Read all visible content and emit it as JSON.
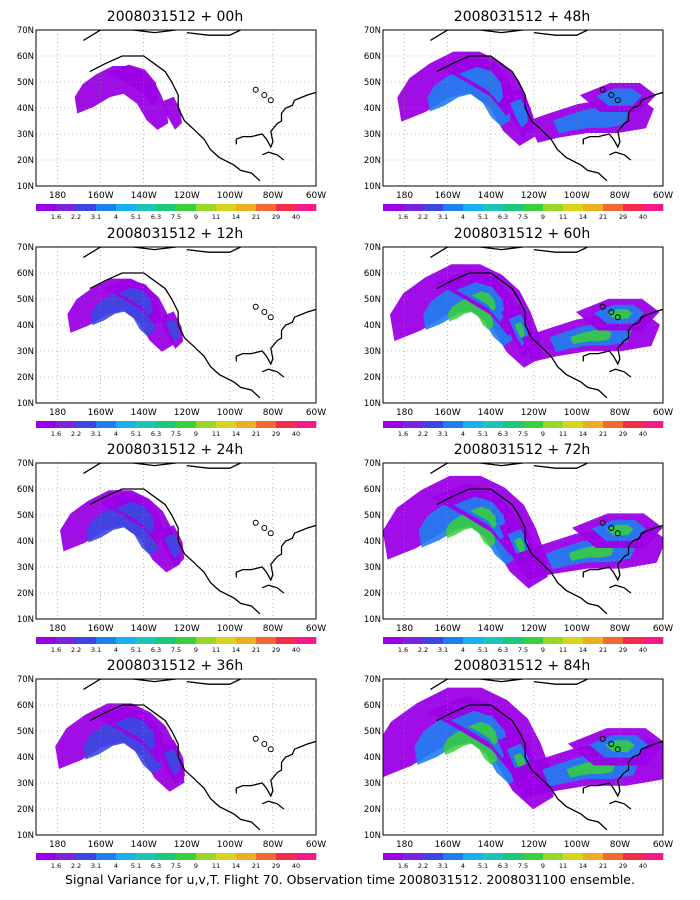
{
  "figure": {
    "caption": "Signal Variance for u,v,T. Flight 70. Observation time 2008031512. 2008031100 ensemble.",
    "y_tick_labels": [
      "70N",
      "60N",
      "50N",
      "40N",
      "30N",
      "20N",
      "10N"
    ],
    "x_tick_labels": [
      "180",
      "160W",
      "140W",
      "120W",
      "100W",
      "80W",
      "60W"
    ],
    "colorbar_labels": [
      "1.6",
      "2.2",
      "3.1",
      "4",
      "5.1",
      "6.3",
      "7.5",
      "9",
      "11",
      "14",
      "21",
      "29",
      "40"
    ],
    "colorbar_colors": [
      "#9b00e6",
      "#7a23d8",
      "#3a48e0",
      "#1f7ff0",
      "#18b0ef",
      "#19c6b8",
      "#1ec87a",
      "#38d13b",
      "#98d72a",
      "#d7d41e",
      "#edae22",
      "#f26b2e",
      "#f22d48",
      "#f51a86"
    ]
  },
  "panels": [
    {
      "title": "2008031512 + 00h",
      "intensity": 0.05
    },
    {
      "title": "2008031512 + 48h",
      "intensity": 0.55
    },
    {
      "title": "2008031512 + 12h",
      "intensity": 0.2
    },
    {
      "title": "2008031512 + 60h",
      "intensity": 0.7
    },
    {
      "title": "2008031512 + 24h",
      "intensity": 0.35
    },
    {
      "title": "2008031512 + 72h",
      "intensity": 0.85
    },
    {
      "title": "2008031512 + 36h",
      "intensity": 0.45
    },
    {
      "title": "2008031512 + 84h",
      "intensity": 1.0
    }
  ]
}
